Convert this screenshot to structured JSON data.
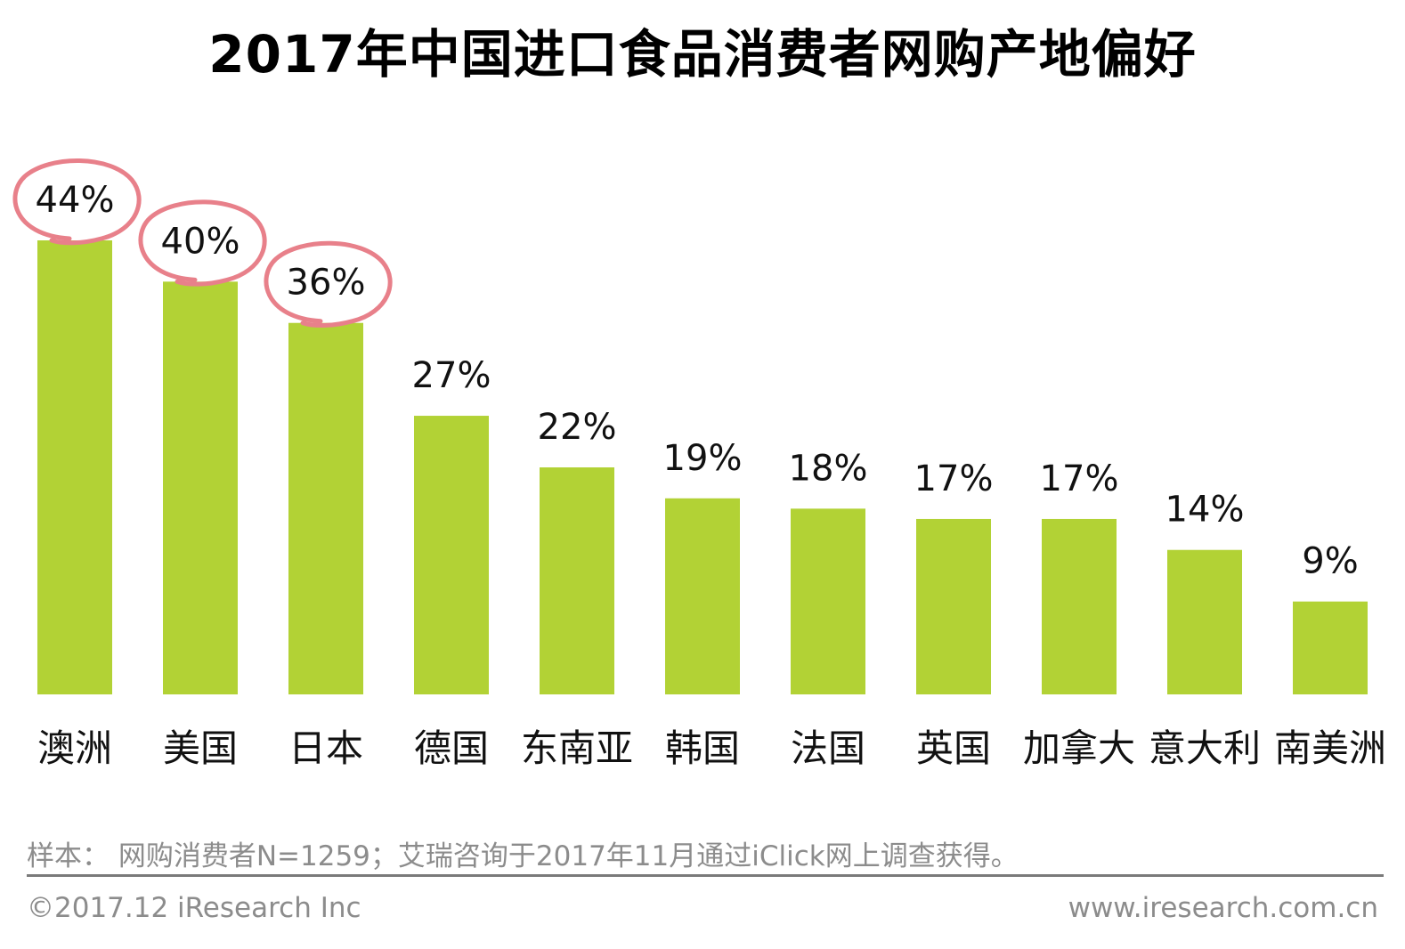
{
  "chart_data": {
    "type": "bar",
    "title": "2017年中国进口食品消费者网购产地偏好",
    "categories": [
      "澳洲",
      "美国",
      "日本",
      "德国",
      "东南亚",
      "韩国",
      "法国",
      "英国",
      "加拿大",
      "意大利",
      "南美洲"
    ],
    "values": [
      44,
      40,
      36,
      27,
      22,
      19,
      18,
      17,
      17,
      14,
      9
    ],
    "data_labels": [
      "44%",
      "40%",
      "36%",
      "27%",
      "22%",
      "19%",
      "18%",
      "17%",
      "17%",
      "14%",
      "9%"
    ],
    "highlighted": [
      true,
      true,
      true,
      false,
      false,
      false,
      false,
      false,
      false,
      false,
      false
    ],
    "ylim": [
      0,
      44
    ],
    "grid": false,
    "bar_color": "#b2d235",
    "highlight_color": "#e8808a"
  },
  "footer": {
    "note": "样本： 网购消费者N=1259；艾瑞咨询于2017年11月通过iClick网上调查获得。",
    "copyright": "©2017.12 iResearch Inc",
    "website": "www.iresearch.com.cn"
  }
}
